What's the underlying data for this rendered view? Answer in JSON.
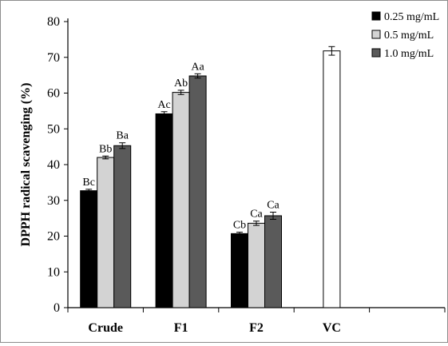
{
  "chart_data": {
    "type": "bar",
    "title": "",
    "xlabel": "",
    "ylabel": "DPPH radical scavenging (%)",
    "ylim": [
      0,
      80
    ],
    "yticks": [
      0,
      10,
      20,
      30,
      40,
      50,
      60,
      70,
      80
    ],
    "categories": [
      "Crude",
      "F1",
      "F2",
      "VC"
    ],
    "series": [
      {
        "name": "0.25 mg/mL",
        "color": "#000000",
        "values": [
          32.7,
          54.2,
          20.7,
          null
        ],
        "errors": [
          0.4,
          0.6,
          0.4,
          null
        ],
        "labels": [
          "Bc",
          "Ac",
          "Cb",
          ""
        ]
      },
      {
        "name": "0.5 mg/mL",
        "color": "#d3d3d3",
        "values": [
          42.0,
          60.2,
          23.6,
          null
        ],
        "errors": [
          0.4,
          0.6,
          0.6,
          null
        ],
        "labels": [
          "Bb",
          "Ab",
          "Ca",
          ""
        ]
      },
      {
        "name": "1.0 mg/mL",
        "color": "#5a5a5a",
        "values": [
          45.3,
          64.8,
          25.7,
          null
        ],
        "errors": [
          0.8,
          0.6,
          1.0,
          null
        ],
        "labels": [
          "Ba",
          "Aa",
          "Ca",
          ""
        ]
      }
    ],
    "extra_bars": [
      {
        "category": "VC",
        "value": 71.8,
        "error": 1.2,
        "color": "#ffffff"
      }
    ],
    "legend_position": "top-right",
    "grid": false
  }
}
